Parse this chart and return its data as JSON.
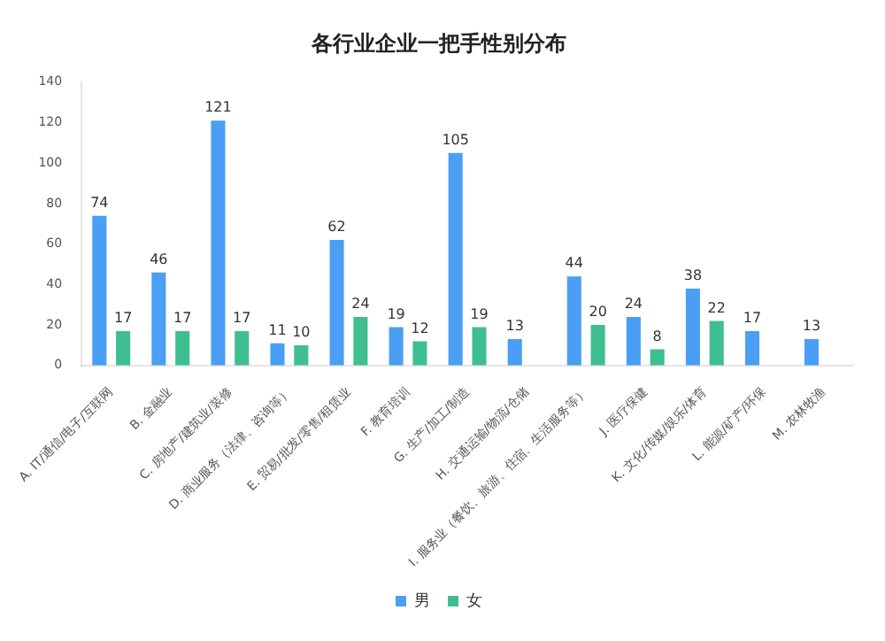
{
  "chart_data": {
    "type": "bar",
    "title": "各行业企业一把手性别分布",
    "categories": [
      "A. IT/通信/电子/互联网",
      "B. 金融业",
      "C. 房地产/建筑业/装修",
      "D. 商业服务（法律、咨询等）",
      "E. 贸易/批发/零售/租赁业",
      "F. 教育培训",
      "G. 生产/加工/制造",
      "H. 交通运输/物流/仓储",
      "I. 服务业（餐饮、旅游、住宿、生活服务等）",
      "J. 医疗保健",
      "K. 文化/传媒/娱乐/体育",
      "L. 能源/矿产/环保",
      "M. 农林牧渔"
    ],
    "series": [
      {
        "name": "男",
        "color": "#4a9ff5",
        "values": [
          74,
          46,
          121,
          11,
          62,
          19,
          105,
          13,
          44,
          24,
          38,
          17,
          13
        ]
      },
      {
        "name": "女",
        "color": "#3fbf8f",
        "values": [
          17,
          17,
          17,
          10,
          24,
          12,
          19,
          null,
          20,
          8,
          22,
          null,
          null
        ]
      }
    ],
    "ylim": [
      0,
      140
    ],
    "yticks": [
      0,
      20,
      40,
      60,
      80,
      100,
      120,
      140
    ],
    "grid": false,
    "legend": "bottom",
    "data_labels": true
  }
}
